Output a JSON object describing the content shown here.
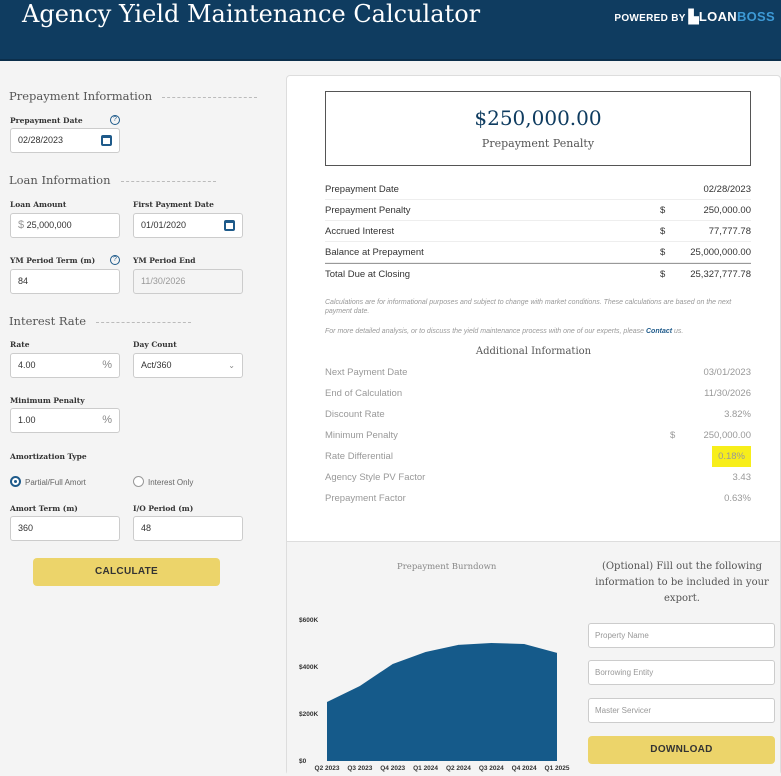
{
  "header": {
    "title": "Agency Yield Maintenance Calculator",
    "powered_by": "POWERED BY",
    "brand_a": "LOAN",
    "brand_b": "BOSS"
  },
  "form": {
    "prepayment_section": "Prepayment Information",
    "prepayment_date_label": "Prepayment Date",
    "prepayment_date": "02/28/2023",
    "loan_section": "Loan Information",
    "loan_amount_label": "Loan Amount",
    "loan_amount": "25,000,000",
    "currency": "$",
    "first_payment_label": "First Payment Date",
    "first_payment": "01/01/2020",
    "ym_term_label": "YM Period Term (m)",
    "ym_term": "84",
    "ym_end_label": "YM Period End",
    "ym_end": "11/30/2026",
    "interest_section": "Interest Rate",
    "rate_label": "Rate",
    "rate": "4.00",
    "pct": "%",
    "day_count_label": "Day Count",
    "day_count": "Act/360",
    "min_penalty_label": "Minimum Penalty",
    "min_penalty": "1.00",
    "amort_type_label": "Amortization Type",
    "amort_opt1": "Partial/Full Amort",
    "amort_opt2": "Interest Only",
    "amort_selected": "Partial/Full Amort",
    "amort_term_label": "Amort Term (m)",
    "amort_term": "360",
    "io_label": "I/O Period (m)",
    "io": "48",
    "calculate": "CALCULATE"
  },
  "results": {
    "penalty_value": "$250,000.00",
    "penalty_label": "Prepayment Penalty",
    "rows": [
      {
        "label": "Prepayment Date",
        "cur": "",
        "value": "02/28/2023"
      },
      {
        "label": "Prepayment Penalty",
        "cur": "$",
        "value": "250,000.00"
      },
      {
        "label": "Accrued Interest",
        "cur": "$",
        "value": "77,777.78"
      },
      {
        "label": "Balance at Prepayment",
        "cur": "$",
        "value": "25,000,000.00"
      },
      {
        "label": "Total Due at Closing",
        "cur": "$",
        "value": "25,327,777.78"
      }
    ],
    "note1": "Calculations are for informational purposes and subject to change with market conditions. These calculations are based on the next payment date.",
    "note2_pre": "For more detailed analysis, or to discuss the yield maintenance process with one of our experts, please ",
    "note2_link": "Contact",
    "note2_post": " us.",
    "additional_title": "Additional Information",
    "additional": [
      {
        "label": "Next Payment Date",
        "cur": "",
        "value": "03/01/2023"
      },
      {
        "label": "End of Calculation",
        "cur": "",
        "value": "11/30/2026"
      },
      {
        "label": "Discount Rate",
        "cur": "",
        "value": "3.82%"
      },
      {
        "label": "Minimum Penalty",
        "cur": "$",
        "value": "250,000.00"
      },
      {
        "label": "Rate Differential",
        "cur": "",
        "value": "0.18%"
      },
      {
        "label": "Agency Style PV Factor",
        "cur": "",
        "value": "3.43"
      },
      {
        "label": "Prepayment Factor",
        "cur": "",
        "value": "0.63%"
      }
    ],
    "highlight_color": "#f7ee1a"
  },
  "export": {
    "text": "(Optional) Fill out the following information to be included in your export.",
    "property_ph": "Property Name",
    "entity_ph": "Borrowing Entity",
    "servicer_ph": "Master Servicer",
    "download": "DOWNLOAD"
  },
  "chart_data": {
    "type": "area",
    "title": "Prepayment Burndown",
    "categories": [
      "Q2 2023",
      "Q3 2023",
      "Q4 2023",
      "Q1 2024",
      "Q2 2024",
      "Q3 2024",
      "Q4 2024",
      "Q1 2025"
    ],
    "values": [
      251000,
      319000,
      413000,
      464000,
      494000,
      502000,
      498000,
      460000
    ],
    "yticks": [
      "$0",
      "$200K",
      "$400K",
      "$600K"
    ],
    "ylim": [
      0,
      600000
    ],
    "color": "#155a8a",
    "grid": false,
    "legend": "none"
  }
}
